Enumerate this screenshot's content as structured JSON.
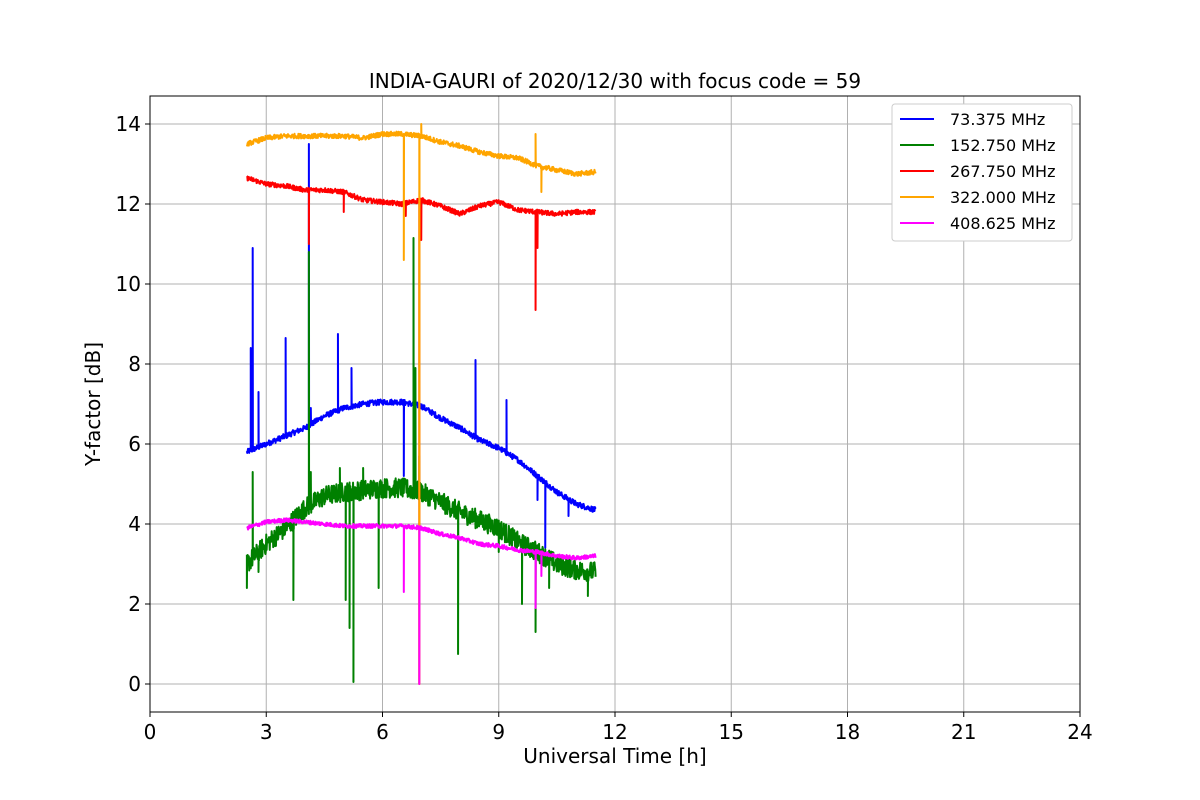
{
  "chart_data": {
    "type": "line",
    "title": "INDIA-GAURI of 2020/12/30 with focus code = 59",
    "xlabel": "Universal Time [h]",
    "ylabel": "Y-factor [dB]",
    "xlim": [
      0,
      24
    ],
    "ylim": [
      -0.7,
      14.7
    ],
    "xticks": [
      0,
      3,
      6,
      9,
      12,
      15,
      18,
      21,
      24
    ],
    "yticks": [
      0,
      2,
      4,
      6,
      8,
      10,
      12,
      14
    ],
    "grid": true,
    "legend_position": "top-right",
    "series": [
      {
        "name": "  73.375 MHz",
        "color": "#0000ff",
        "points": [
          [
            2.5,
            5.8
          ],
          [
            3.0,
            6.0
          ],
          [
            3.5,
            6.2
          ],
          [
            4.0,
            6.4
          ],
          [
            4.5,
            6.7
          ],
          [
            5.0,
            6.9
          ],
          [
            5.5,
            7.0
          ],
          [
            6.0,
            7.05
          ],
          [
            6.5,
            7.05
          ],
          [
            7.0,
            6.95
          ],
          [
            7.5,
            6.65
          ],
          [
            8.0,
            6.4
          ],
          [
            8.5,
            6.1
          ],
          [
            9.0,
            5.9
          ],
          [
            9.5,
            5.6
          ],
          [
            10.0,
            5.2
          ],
          [
            10.5,
            4.8
          ],
          [
            11.0,
            4.5
          ],
          [
            11.5,
            4.35
          ]
        ],
        "spikes": [
          [
            2.6,
            8.4
          ],
          [
            2.65,
            10.9
          ],
          [
            2.8,
            7.3
          ],
          [
            3.5,
            8.65
          ],
          [
            4.1,
            13.5
          ],
          [
            4.15,
            6.9
          ],
          [
            4.85,
            8.75
          ],
          [
            5.2,
            7.9
          ],
          [
            6.55,
            5.2
          ],
          [
            8.4,
            8.1
          ],
          [
            9.2,
            7.1
          ],
          [
            10.0,
            4.6
          ],
          [
            10.2,
            3.4
          ],
          [
            10.8,
            4.2
          ]
        ]
      },
      {
        "name": "152.750 MHz",
        "color": "#008000",
        "points": [
          [
            2.5,
            3.0
          ],
          [
            3.0,
            3.5
          ],
          [
            3.5,
            3.9
          ],
          [
            4.0,
            4.4
          ],
          [
            4.5,
            4.7
          ],
          [
            5.0,
            4.8
          ],
          [
            5.5,
            4.85
          ],
          [
            6.0,
            4.9
          ],
          [
            6.5,
            4.9
          ],
          [
            7.0,
            4.8
          ],
          [
            7.5,
            4.55
          ],
          [
            8.0,
            4.3
          ],
          [
            8.5,
            4.1
          ],
          [
            9.0,
            3.9
          ],
          [
            9.5,
            3.55
          ],
          [
            10.0,
            3.3
          ],
          [
            10.5,
            3.0
          ],
          [
            11.0,
            2.85
          ],
          [
            11.5,
            2.8
          ]
        ],
        "spikes": [
          [
            2.5,
            2.4
          ],
          [
            2.65,
            5.3
          ],
          [
            2.8,
            2.8
          ],
          [
            3.7,
            2.1
          ],
          [
            4.1,
            10.8
          ],
          [
            4.15,
            5.3
          ],
          [
            4.9,
            5.4
          ],
          [
            5.05,
            2.1
          ],
          [
            5.15,
            1.4
          ],
          [
            5.25,
            0.05
          ],
          [
            5.5,
            5.4
          ],
          [
            5.9,
            2.4
          ],
          [
            6.8,
            11.15
          ],
          [
            6.85,
            7.9
          ],
          [
            6.95,
            5.7
          ],
          [
            7.95,
            0.75
          ],
          [
            9.0,
            3.3
          ],
          [
            9.6,
            2.0
          ],
          [
            9.95,
            1.3
          ],
          [
            10.3,
            2.4
          ],
          [
            11.3,
            2.2
          ]
        ]
      },
      {
        "name": "267.750 MHz",
        "color": "#ff0000",
        "points": [
          [
            2.5,
            12.65
          ],
          [
            3.0,
            12.5
          ],
          [
            3.5,
            12.45
          ],
          [
            4.0,
            12.35
          ],
          [
            4.5,
            12.35
          ],
          [
            5.0,
            12.3
          ],
          [
            5.5,
            12.1
          ],
          [
            6.0,
            12.05
          ],
          [
            6.5,
            12.0
          ],
          [
            7.0,
            12.1
          ],
          [
            7.5,
            11.95
          ],
          [
            8.0,
            11.75
          ],
          [
            8.5,
            11.95
          ],
          [
            9.0,
            12.05
          ],
          [
            9.5,
            11.85
          ],
          [
            10.0,
            11.8
          ],
          [
            10.5,
            11.75
          ],
          [
            11.0,
            11.8
          ],
          [
            11.5,
            11.8
          ]
        ],
        "spikes": [
          [
            4.1,
            11.0
          ],
          [
            5.0,
            11.8
          ],
          [
            6.6,
            11.7
          ],
          [
            6.95,
            0.0
          ],
          [
            7.0,
            11.1
          ],
          [
            9.95,
            9.35
          ],
          [
            10.0,
            10.9
          ]
        ]
      },
      {
        "name": "322.000 MHz",
        "color": "#ffa500",
        "points": [
          [
            2.5,
            13.5
          ],
          [
            3.0,
            13.65
          ],
          [
            3.5,
            13.7
          ],
          [
            4.0,
            13.7
          ],
          [
            4.5,
            13.7
          ],
          [
            5.0,
            13.7
          ],
          [
            5.5,
            13.65
          ],
          [
            6.0,
            13.75
          ],
          [
            6.5,
            13.75
          ],
          [
            7.0,
            13.7
          ],
          [
            7.5,
            13.55
          ],
          [
            8.0,
            13.45
          ],
          [
            8.5,
            13.3
          ],
          [
            9.0,
            13.2
          ],
          [
            9.5,
            13.15
          ],
          [
            10.0,
            12.95
          ],
          [
            10.5,
            12.85
          ],
          [
            11.0,
            12.75
          ],
          [
            11.5,
            12.8
          ]
        ],
        "spikes": [
          [
            6.55,
            10.6
          ],
          [
            6.95,
            0.0
          ],
          [
            7.0,
            14.0
          ],
          [
            9.95,
            13.75
          ],
          [
            10.1,
            12.3
          ]
        ]
      },
      {
        "name": "408.625 MHz",
        "color": "#ff00ff",
        "points": [
          [
            2.5,
            3.9
          ],
          [
            3.0,
            4.05
          ],
          [
            3.5,
            4.1
          ],
          [
            4.0,
            4.05
          ],
          [
            4.5,
            4.0
          ],
          [
            5.0,
            3.95
          ],
          [
            5.5,
            3.95
          ],
          [
            6.0,
            3.95
          ],
          [
            6.5,
            3.95
          ],
          [
            7.0,
            3.9
          ],
          [
            7.5,
            3.75
          ],
          [
            8.0,
            3.65
          ],
          [
            8.5,
            3.5
          ],
          [
            9.0,
            3.45
          ],
          [
            9.5,
            3.35
          ],
          [
            10.0,
            3.3
          ],
          [
            10.5,
            3.2
          ],
          [
            11.0,
            3.15
          ],
          [
            11.5,
            3.2
          ]
        ],
        "spikes": [
          [
            6.55,
            2.3
          ],
          [
            6.95,
            0.0
          ],
          [
            9.95,
            1.9
          ],
          [
            10.1,
            2.7
          ]
        ]
      }
    ]
  }
}
